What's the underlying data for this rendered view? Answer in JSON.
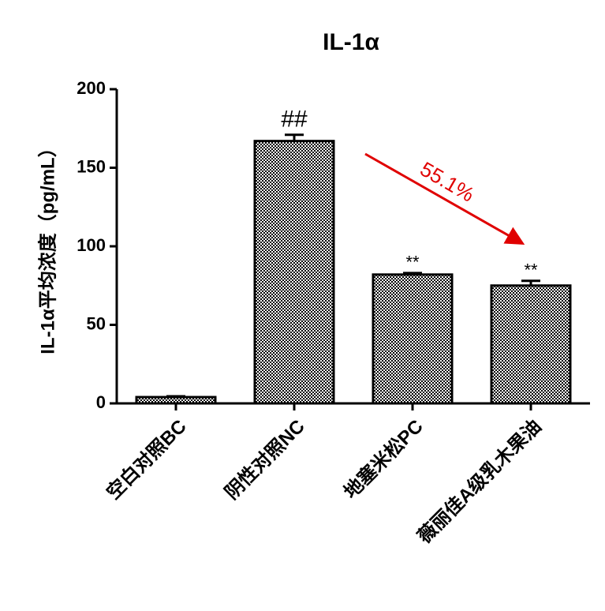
{
  "chart_data": {
    "type": "bar",
    "title": "IL-1α",
    "y_label": "IL-1α平均浓度（pg/mL）",
    "categories": [
      "空白对照BC",
      "阴性对照NC",
      "地塞米松PC",
      "薇丽佳A级乳木果油"
    ],
    "values": [
      4,
      167,
      82,
      75
    ],
    "errors": [
      0.5,
      4,
      1,
      3
    ],
    "color": "#000000",
    "ylim": [
      0,
      200
    ],
    "yticks": [
      0,
      50,
      100,
      150,
      200
    ],
    "bar_annotations": [
      null,
      "##",
      "**",
      "**"
    ],
    "arrow_label": "55.1%"
  }
}
